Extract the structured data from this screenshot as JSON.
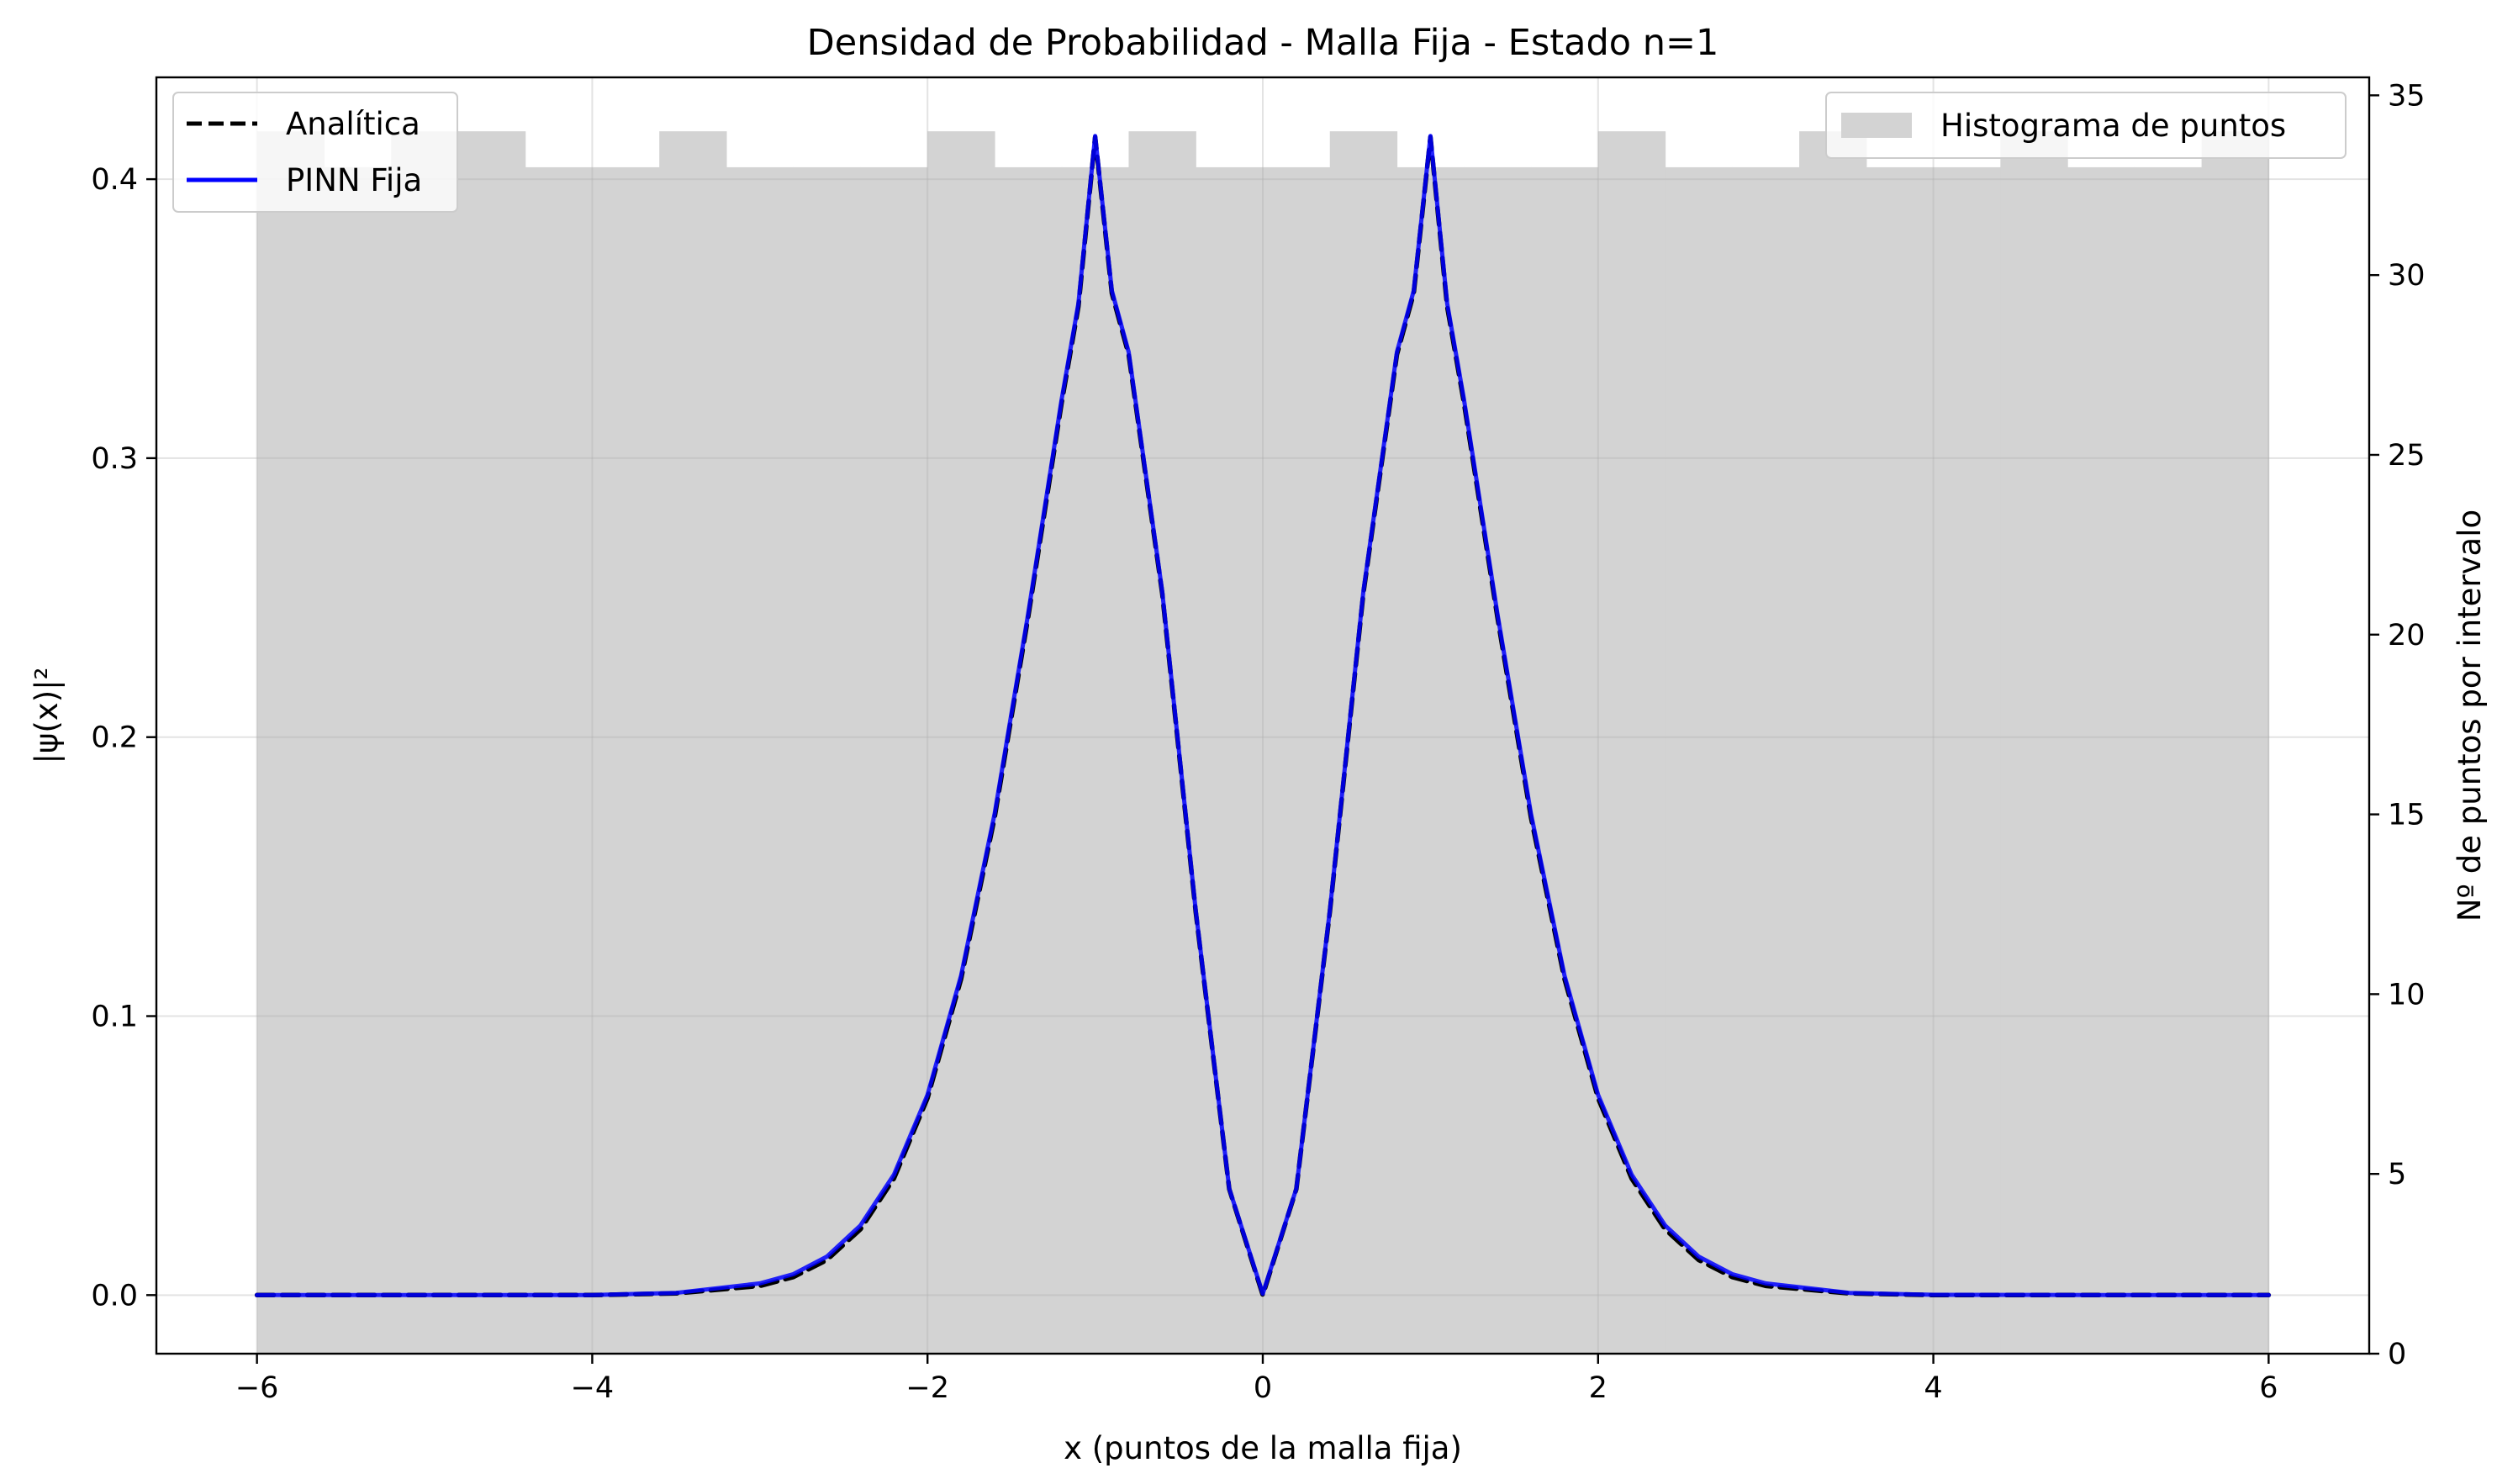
{
  "chart_data": {
    "type": "line",
    "title": "Densidad de Probabilidad - Malla Fija - Estado n=1",
    "xlabel": "x (puntos de la malla fija)",
    "ylabel": "|ψ(x)|²",
    "y2label": "Nº de puntos por intervalo",
    "xlim": [
      -6.6,
      6.6
    ],
    "ylim": [
      -0.021,
      0.4365
    ],
    "y2lim": [
      0,
      35.5
    ],
    "x_ticks": [
      -6,
      -4,
      -2,
      0,
      2,
      4,
      6
    ],
    "x_tick_labels": [
      "−6",
      "−4",
      "−2",
      "0",
      "2",
      "4",
      "6"
    ],
    "y_ticks": [
      0.0,
      0.1,
      0.2,
      0.3,
      0.4
    ],
    "y_tick_labels": [
      "0.0",
      "0.1",
      "0.2",
      "0.3",
      "0.4"
    ],
    "y2_ticks": [
      0,
      5,
      10,
      15,
      20,
      25,
      30,
      35
    ],
    "y2_tick_labels": [
      "0",
      "5",
      "10",
      "15",
      "20",
      "25",
      "30",
      "35"
    ],
    "grid": true,
    "series": [
      {
        "name": "Analítica",
        "style": "dashed",
        "color": "#000000",
        "x": [
          -6,
          -5,
          -4,
          -3.5,
          -3,
          -2.8,
          -2.6,
          -2.4,
          -2.2,
          -2,
          -1.8,
          -1.6,
          -1.4,
          -1.2,
          -1.1,
          -1,
          -0.9,
          -0.8,
          -0.6,
          -0.4,
          -0.2,
          0,
          0.2,
          0.4,
          0.6,
          0.8,
          0.9,
          1,
          1.1,
          1.2,
          1.4,
          1.6,
          1.8,
          2,
          2.2,
          2.4,
          2.6,
          2.8,
          3,
          3.5,
          4,
          5,
          6
        ],
        "y": [
          0,
          0,
          0,
          0.0006,
          0.0033,
          0.0065,
          0.0126,
          0.0236,
          0.0418,
          0.0706,
          0.1133,
          0.1712,
          0.2428,
          0.3198,
          0.3544,
          0.4151,
          0.3591,
          0.3371,
          0.2515,
          0.1375,
          0.038,
          0,
          0.038,
          0.1375,
          0.2515,
          0.3371,
          0.3591,
          0.4151,
          0.3544,
          0.3198,
          0.2428,
          0.1712,
          0.1133,
          0.0706,
          0.0418,
          0.0236,
          0.0126,
          0.0065,
          0.0033,
          0.0006,
          0,
          0,
          0
        ]
      },
      {
        "name": "PINN Fija",
        "style": "solid",
        "color": "#0000ff",
        "x": [
          -6,
          -5,
          -4,
          -3.5,
          -3,
          -2.8,
          -2.6,
          -2.4,
          -2.2,
          -2,
          -1.8,
          -1.6,
          -1.4,
          -1.2,
          -1.1,
          -1,
          -0.9,
          -0.8,
          -0.6,
          -0.4,
          -0.2,
          0,
          0.2,
          0.4,
          0.6,
          0.8,
          0.9,
          1,
          1.1,
          1.2,
          1.4,
          1.6,
          1.8,
          2,
          2.2,
          2.4,
          2.6,
          2.8,
          3,
          3.5,
          4,
          5,
          6
        ],
        "y": [
          0,
          0,
          0,
          0.0008,
          0.0042,
          0.0075,
          0.0138,
          0.025,
          0.0432,
          0.0718,
          0.1145,
          0.1725,
          0.244,
          0.321,
          0.3555,
          0.4155,
          0.36,
          0.338,
          0.2522,
          0.138,
          0.0382,
          0.0005,
          0.0382,
          0.138,
          0.2522,
          0.338,
          0.36,
          0.4155,
          0.3555,
          0.321,
          0.244,
          0.1725,
          0.1145,
          0.0718,
          0.0432,
          0.025,
          0.0138,
          0.0075,
          0.0042,
          0.0008,
          0.0001,
          0,
          0
        ]
      }
    ],
    "histogram": {
      "name": "Histograma de puntos",
      "color": "#d3d3d3",
      "bin_edges": [
        -6,
        -5.6,
        -5.2,
        -4.8,
        -4.4,
        -4,
        -3.6,
        -3.2,
        -2.8,
        -2.4,
        -2,
        -1.6,
        -1.2,
        -0.8,
        -0.4,
        0,
        0.4,
        0.8,
        1.2,
        1.6,
        2,
        2.4,
        2.8,
        3.2,
        3.6,
        4,
        4.4,
        4.8,
        5.2,
        5.6,
        6
      ],
      "counts": [
        34,
        33,
        34,
        34,
        33,
        33,
        34,
        33,
        33,
        33,
        34,
        33,
        33,
        34,
        33,
        33,
        34,
        33,
        33,
        33,
        34,
        33,
        33,
        34,
        33,
        33,
        34,
        33,
        33,
        34
      ]
    },
    "legend_left": {
      "placement": "top-left",
      "entries": [
        "Analítica",
        "PINN Fija"
      ]
    },
    "legend_right": {
      "placement": "top-right",
      "entries": [
        "Histograma de puntos"
      ]
    }
  }
}
